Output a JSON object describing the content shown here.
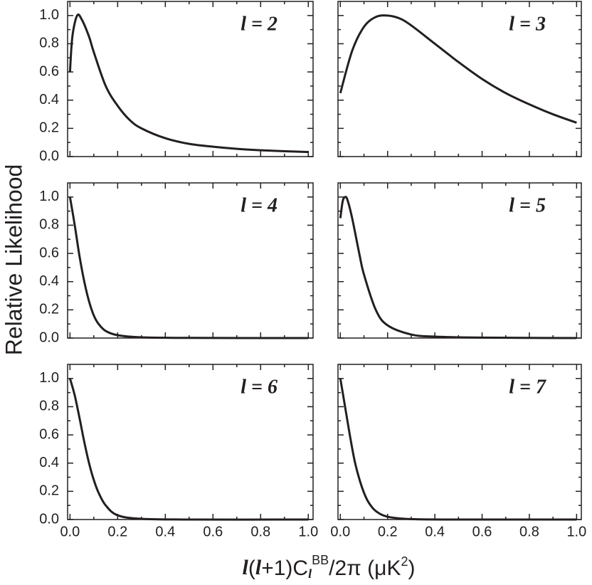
{
  "ylabel": "Relative Likelihood",
  "xlabel": [
    "l",
    "(",
    "l",
    "+1)C",
    "l",
    "BB",
    "/2π (μK",
    "2",
    ")"
  ],
  "chart_data": [
    {
      "type": "line",
      "title": "l = 2",
      "color": "#231f20",
      "x": [
        0,
        0.01,
        0.03,
        0.05,
        0.08,
        0.1,
        0.15,
        0.2,
        0.25,
        0.3,
        0.4,
        0.5,
        0.6,
        0.7,
        0.8,
        0.9,
        1.0
      ],
      "values": [
        0.6,
        0.85,
        1.0,
        0.97,
        0.85,
        0.74,
        0.5,
        0.36,
        0.26,
        0.2,
        0.13,
        0.09,
        0.07,
        0.055,
        0.045,
        0.038,
        0.032
      ],
      "xlim": [
        -0.01,
        1.02
      ],
      "ylim": [
        0,
        1.1
      ],
      "xticks": [
        0,
        0.2,
        0.4,
        0.6,
        0.8,
        1.0
      ],
      "yticks": [
        {
          "value": 0,
          "label": "0.0"
        },
        {
          "value": 0.2,
          "label": "0.2"
        },
        {
          "value": 0.4,
          "label": "0.4"
        },
        {
          "value": 0.6,
          "label": "0.6"
        },
        {
          "value": 0.8,
          "label": "0.8"
        },
        {
          "value": 1.0,
          "label": "1.0"
        }
      ]
    },
    {
      "type": "line",
      "title": "l = 3",
      "color": "#231f20",
      "x": [
        0,
        0.05,
        0.1,
        0.15,
        0.2,
        0.25,
        0.3,
        0.4,
        0.5,
        0.6,
        0.7,
        0.8,
        0.9,
        1.0
      ],
      "values": [
        0.45,
        0.75,
        0.92,
        0.99,
        1.0,
        0.98,
        0.93,
        0.8,
        0.67,
        0.55,
        0.45,
        0.37,
        0.3,
        0.24
      ],
      "xlim": [
        -0.01,
        1.02
      ],
      "ylim": [
        0,
        1.1
      ],
      "xticks": [
        0,
        0.2,
        0.4,
        0.6,
        0.8,
        1.0
      ],
      "yticks": [
        0,
        0.2,
        0.4,
        0.6,
        0.8,
        1.0
      ]
    },
    {
      "type": "line",
      "title": "l = 4",
      "color": "#231f20",
      "x": [
        0,
        0.02,
        0.04,
        0.06,
        0.08,
        0.1,
        0.12,
        0.15,
        0.2,
        0.3,
        0.5,
        1.0
      ],
      "values": [
        1.0,
        0.8,
        0.58,
        0.4,
        0.26,
        0.16,
        0.1,
        0.05,
        0.02,
        0.005,
        0.001,
        0
      ],
      "xlim": [
        -0.01,
        1.02
      ],
      "ylim": [
        0,
        1.1
      ],
      "xticks": [
        0,
        0.2,
        0.4,
        0.6,
        0.8,
        1.0
      ],
      "yticks": [
        {
          "value": 0,
          "label": "0.0"
        },
        {
          "value": 0.2,
          "label": "0.2"
        },
        {
          "value": 0.4,
          "label": "0.4"
        },
        {
          "value": 0.6,
          "label": "0.6"
        },
        {
          "value": 0.8,
          "label": "0.8"
        },
        {
          "value": 1.0,
          "label": "1.0"
        }
      ]
    },
    {
      "type": "line",
      "title": "l = 5",
      "color": "#231f20",
      "x": [
        0,
        0.01,
        0.02,
        0.03,
        0.05,
        0.08,
        0.1,
        0.15,
        0.2,
        0.3,
        0.4,
        0.6,
        1.0
      ],
      "values": [
        0.85,
        0.97,
        1.0,
        0.98,
        0.85,
        0.6,
        0.45,
        0.2,
        0.09,
        0.025,
        0.01,
        0.003,
        0
      ],
      "xlim": [
        -0.01,
        1.02
      ],
      "ylim": [
        0,
        1.1
      ],
      "xticks": [
        0,
        0.2,
        0.4,
        0.6,
        0.8,
        1.0
      ],
      "yticks": [
        0,
        0.2,
        0.4,
        0.6,
        0.8,
        1.0
      ]
    },
    {
      "type": "line",
      "title": "l = 6",
      "color": "#231f20",
      "x": [
        0,
        0.02,
        0.04,
        0.06,
        0.08,
        0.1,
        0.12,
        0.15,
        0.2,
        0.3,
        0.5,
        1.0
      ],
      "values": [
        1.0,
        0.88,
        0.72,
        0.55,
        0.4,
        0.28,
        0.19,
        0.1,
        0.03,
        0.005,
        0,
        0
      ],
      "xlim": [
        -0.01,
        1.02
      ],
      "ylim": [
        0,
        1.1
      ],
      "xticks": [
        {
          "value": 0,
          "label": "0.0"
        },
        {
          "value": 0.2,
          "label": "0.2"
        },
        {
          "value": 0.4,
          "label": "0.4"
        },
        {
          "value": 0.6,
          "label": "0.6"
        },
        {
          "value": 0.8,
          "label": "0.8"
        },
        {
          "value": 1.0,
          "label": "1.0"
        }
      ],
      "yticks": [
        {
          "value": 0,
          "label": "0.0"
        },
        {
          "value": 0.2,
          "label": "0.2"
        },
        {
          "value": 0.4,
          "label": "0.4"
        },
        {
          "value": 0.6,
          "label": "0.6"
        },
        {
          "value": 0.8,
          "label": "0.8"
        },
        {
          "value": 1.0,
          "label": "1.0"
        }
      ]
    },
    {
      "type": "line",
      "title": "l = 7",
      "color": "#231f20",
      "x": [
        0,
        0.02,
        0.04,
        0.06,
        0.08,
        0.1,
        0.12,
        0.15,
        0.2,
        0.3,
        0.5,
        1.0
      ],
      "values": [
        1.0,
        0.8,
        0.6,
        0.42,
        0.29,
        0.19,
        0.12,
        0.06,
        0.02,
        0.003,
        0,
        0
      ],
      "xlim": [
        -0.01,
        1.02
      ],
      "ylim": [
        0,
        1.1
      ],
      "xticks": [
        {
          "value": 0,
          "label": "0.0"
        },
        {
          "value": 0.2,
          "label": "0.2"
        },
        {
          "value": 0.4,
          "label": "0.4"
        },
        {
          "value": 0.6,
          "label": "0.6"
        },
        {
          "value": 0.8,
          "label": "0.8"
        },
        {
          "value": 1.0,
          "label": "1.0"
        }
      ],
      "yticks": [
        0,
        0.2,
        0.4,
        0.6,
        0.8,
        1.0
      ]
    }
  ]
}
